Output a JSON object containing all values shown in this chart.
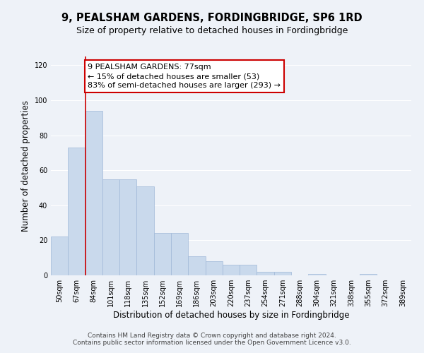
{
  "title": "9, PEALSHAM GARDENS, FORDINGBRIDGE, SP6 1RD",
  "subtitle": "Size of property relative to detached houses in Fordingbridge",
  "xlabel": "Distribution of detached houses by size in Fordingbridge",
  "ylabel": "Number of detached properties",
  "categories": [
    "50sqm",
    "67sqm",
    "84sqm",
    "101sqm",
    "118sqm",
    "135sqm",
    "152sqm",
    "169sqm",
    "186sqm",
    "203sqm",
    "220sqm",
    "237sqm",
    "254sqm",
    "271sqm",
    "288sqm",
    "304sqm",
    "321sqm",
    "338sqm",
    "355sqm",
    "372sqm",
    "389sqm"
  ],
  "values": [
    22,
    73,
    94,
    55,
    55,
    51,
    24,
    24,
    11,
    8,
    6,
    6,
    2,
    2,
    0,
    1,
    0,
    0,
    1,
    0,
    0
  ],
  "bar_color": "#c9d9ec",
  "bar_edge_color": "#a0b8d8",
  "vline_color": "#cc0000",
  "vline_x_index": 1.5,
  "annotation_text": "9 PEALSHAM GARDENS: 77sqm\n← 15% of detached houses are smaller (53)\n83% of semi-detached houses are larger (293) →",
  "annotation_box_color": "#ffffff",
  "annotation_box_edge": "#cc0000",
  "ylim": [
    0,
    125
  ],
  "yticks": [
    0,
    20,
    40,
    60,
    80,
    100,
    120
  ],
  "footer_text": "Contains HM Land Registry data © Crown copyright and database right 2024.\nContains public sector information licensed under the Open Government Licence v3.0.",
  "background_color": "#eef2f8",
  "grid_color": "#ffffff",
  "title_fontsize": 10.5,
  "subtitle_fontsize": 9,
  "axis_label_fontsize": 8.5,
  "tick_fontsize": 7,
  "annotation_fontsize": 8,
  "footer_fontsize": 6.5
}
